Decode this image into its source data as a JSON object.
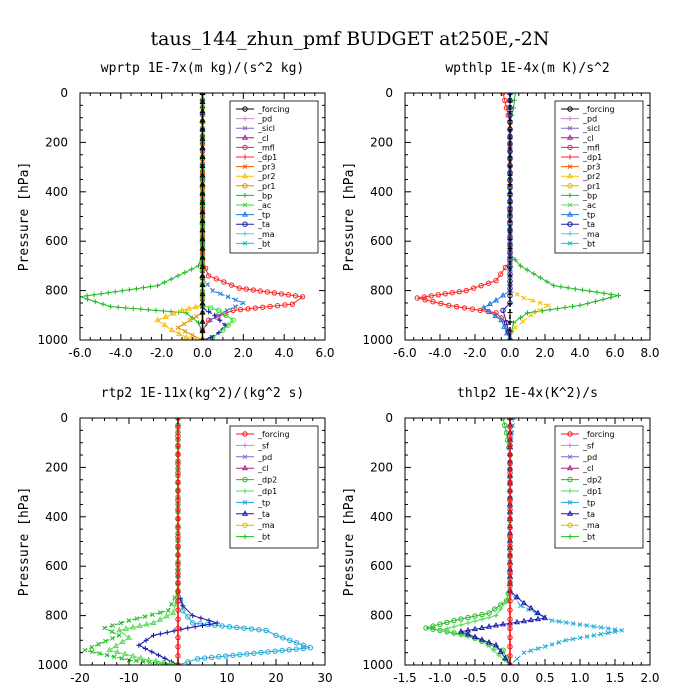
{
  "figure_title": "taus_144_zhun_pmf  BUDGET at250E,-2N",
  "chart_data": [
    {
      "type": "line",
      "title": "wprtp  1E-7x(m kg)/(s^2 kg)",
      "ylabel": "Pressure [hPa]",
      "xlim": [
        -6,
        6
      ],
      "ylim": [
        1000,
        0
      ],
      "xticks": [
        "-6.0",
        "-4.0",
        "-2.0",
        "0.0",
        "2.0",
        "4.0",
        "6.0"
      ],
      "yticks": [
        "0",
        "200",
        "400",
        "600",
        "800",
        "1000"
      ],
      "legend": [
        "_forcing",
        "_pd",
        "_sicl",
        "_cl",
        "_mfl",
        "_dp1",
        "_pr3",
        "_pr2",
        "_pr1",
        "_bp",
        "_ac",
        "_tp",
        "_ta",
        "_ma",
        "_bt"
      ],
      "series": [
        {
          "name": "_dp1",
          "color": "#ff2020",
          "x": [
            0,
            0,
            0.3,
            1.8,
            4.9,
            4.4,
            1.5,
            0.3,
            0,
            0
          ],
          "y": [
            0,
            680,
            740,
            790,
            825,
            855,
            880,
            920,
            960,
            1000
          ]
        },
        {
          "name": "_bp",
          "color": "#22bb22",
          "x": [
            0,
            0,
            -0.2,
            -2.2,
            -6.0,
            -4.5,
            -0.8,
            -0.2,
            0,
            0
          ],
          "y": [
            0,
            650,
            700,
            780,
            825,
            865,
            890,
            930,
            970,
            1000
          ]
        },
        {
          "name": "_tp",
          "color": "#2277dd",
          "x": [
            0,
            0,
            0.5,
            2.0,
            1.2,
            0.4,
            0,
            0
          ],
          "y": [
            0,
            750,
            800,
            850,
            880,
            920,
            960,
            1000
          ]
        },
        {
          "name": "_pr2",
          "color": "#ffbb00",
          "x": [
            0,
            0,
            -1.0,
            -2.2,
            -1.5,
            -0.8,
            0
          ],
          "y": [
            0,
            860,
            880,
            920,
            960,
            990,
            1000
          ]
        },
        {
          "name": "_ac",
          "color": "#33dd33",
          "x": [
            0,
            0,
            0.8,
            1.5,
            1.0,
            0.5,
            0
          ],
          "y": [
            0,
            860,
            880,
            920,
            960,
            990,
            1000
          ]
        },
        {
          "name": "_ta",
          "color": "#1a1aa8",
          "x": [
            0,
            0,
            0.6,
            1.1,
            0.8,
            0.4,
            0
          ],
          "y": [
            0,
            870,
            900,
            940,
            970,
            990,
            1000
          ]
        },
        {
          "name": "_pr1",
          "color": "#dd9900",
          "x": [
            0,
            0,
            -0.6,
            -1.2,
            -0.5,
            0
          ],
          "y": [
            0,
            890,
            920,
            950,
            980,
            1000
          ]
        },
        {
          "name": "_forcing",
          "color": "#000000",
          "x": [
            0,
            0
          ],
          "y": [
            0,
            1000
          ]
        }
      ]
    },
    {
      "type": "line",
      "title": "wpthlp  1E-4x(m K)/s^2",
      "ylabel": "Pressure [hPa]",
      "xlim": [
        -6,
        8
      ],
      "ylim": [
        1000,
        0
      ],
      "xticks": [
        "-6.0",
        "-4.0",
        "-2.0",
        "0.0",
        "2.0",
        "4.0",
        "6.0",
        "8.0"
      ],
      "yticks": [
        "0",
        "200",
        "400",
        "600",
        "800",
        "1000"
      ],
      "legend": [
        "_forcing",
        "_pd",
        "_sicl",
        "_cl",
        "_mfl",
        "_dp1",
        "_pr3",
        "_pr2",
        "_pr1",
        "_bp",
        "_ac",
        "_tp",
        "_ta",
        "_ma",
        "_bt"
      ],
      "series": [
        {
          "name": "_dp1",
          "color": "#ff2020",
          "x": [
            -0.4,
            -0.2,
            0,
            0,
            -0.8,
            -2.5,
            -5.3,
            -3.5,
            -0.8,
            -0.2,
            0
          ],
          "y": [
            0,
            60,
            120,
            680,
            760,
            800,
            830,
            860,
            890,
            930,
            1000
          ]
        },
        {
          "name": "_bp",
          "color": "#22bb22",
          "x": [
            0.3,
            0.2,
            0,
            0,
            0.6,
            2.5,
            6.2,
            4.0,
            1.0,
            0.2,
            0
          ],
          "y": [
            0,
            60,
            120,
            650,
            700,
            780,
            820,
            860,
            890,
            930,
            1000
          ]
        },
        {
          "name": "_pr2",
          "color": "#ffbb00",
          "x": [
            0,
            0,
            0.8,
            2.2,
            1.2,
            0.3,
            0
          ],
          "y": [
            0,
            800,
            830,
            860,
            900,
            950,
            1000
          ]
        },
        {
          "name": "_tp",
          "color": "#2277dd",
          "x": [
            0,
            0,
            -0.8,
            -1.5,
            -0.5,
            0
          ],
          "y": [
            0,
            800,
            840,
            870,
            920,
            1000
          ]
        },
        {
          "name": "_ta",
          "color": "#1a1aa8",
          "x": [
            0,
            0,
            -0.4,
            -0.2,
            0
          ],
          "y": [
            0,
            850,
            880,
            930,
            1000
          ]
        },
        {
          "name": "_forcing",
          "color": "#000000",
          "x": [
            0,
            0
          ],
          "y": [
            0,
            1000
          ]
        }
      ]
    },
    {
      "type": "line",
      "title": "rtp2  1E-11x(kg^2)/(kg^2 s)",
      "ylabel": "Pressure [hPa]",
      "xlim": [
        -20,
        30
      ],
      "ylim": [
        1000,
        0
      ],
      "xticks": [
        "-20",
        "-10",
        "0",
        "10",
        "20",
        "30"
      ],
      "yticks": [
        "0",
        "200",
        "400",
        "600",
        "800",
        "1000"
      ],
      "legend": [
        "_forcing",
        "_sf",
        "_pd",
        "_cl",
        "_dp2",
        "_dp1",
        "_tp",
        "_ta",
        "_ma",
        "_bt"
      ],
      "series": [
        {
          "name": "_tp",
          "color": "#1faad8",
          "x": [
            0,
            0,
            1,
            3,
            18,
            20,
            27,
            4,
            0
          ],
          "y": [
            0,
            700,
            780,
            830,
            860,
            880,
            930,
            975,
            1000
          ]
        },
        {
          "name": "_ta",
          "color": "#1a1aa8",
          "x": [
            0,
            0,
            1,
            3,
            8,
            2,
            -5,
            -8,
            -4,
            0
          ],
          "y": [
            0,
            700,
            760,
            800,
            830,
            850,
            880,
            920,
            960,
            1000
          ]
        },
        {
          "name": "_dp2",
          "color": "#22bb22",
          "x": [
            0,
            0,
            -2,
            -10,
            -15,
            -12,
            -19,
            -10,
            0
          ],
          "y": [
            0,
            700,
            780,
            820,
            850,
            880,
            940,
            980,
            1000
          ]
        },
        {
          "name": "_dp1",
          "color": "#55dd55",
          "x": [
            0,
            0,
            -1,
            -5,
            -12,
            -10,
            -14,
            -6,
            0
          ],
          "y": [
            0,
            720,
            790,
            830,
            860,
            890,
            940,
            980,
            1000
          ]
        },
        {
          "name": "_forcing",
          "color": "#ff1010",
          "x": [
            0,
            0
          ],
          "y": [
            0,
            1000
          ]
        }
      ]
    },
    {
      "type": "line",
      "title": "thlp2  1E-4x(K^2)/s",
      "ylabel": "Pressure [hPa]",
      "xlim": [
        -1.5,
        2.0
      ],
      "ylim": [
        1000,
        0
      ],
      "xticks": [
        "-1.5",
        "-1.0",
        "-0.5",
        "0.0",
        "0.5",
        "1.0",
        "1.5",
        "2.0"
      ],
      "yticks": [
        "0",
        "200",
        "400",
        "600",
        "800",
        "1000"
      ],
      "legend": [
        "_forcing",
        "_sf",
        "_pd",
        "_cl",
        "_dp2",
        "_dp1",
        "_tp",
        "_ta",
        "_ma",
        "_bt"
      ],
      "series": [
        {
          "name": "_dp2",
          "color": "#22bb22",
          "x": [
            -0.1,
            -0.05,
            0,
            0,
            -0.05,
            -0.3,
            -0.8,
            -1.2,
            -0.6,
            -0.1,
            0
          ],
          "y": [
            0,
            60,
            150,
            680,
            740,
            790,
            820,
            850,
            880,
            940,
            1000
          ]
        },
        {
          "name": "_dp1",
          "color": "#55dd55",
          "x": [
            0,
            0,
            -0.2,
            -0.6,
            -1.0,
            -0.4,
            0
          ],
          "y": [
            0,
            720,
            800,
            830,
            860,
            900,
            1000
          ]
        },
        {
          "name": "_tp",
          "color": "#1faad8",
          "x": [
            0.05,
            0,
            0,
            0.15,
            0.6,
            1.6,
            0.8,
            0.2,
            0
          ],
          "y": [
            0,
            150,
            700,
            760,
            820,
            860,
            900,
            950,
            1000
          ]
        },
        {
          "name": "_ta",
          "color": "#1a1aa8",
          "x": [
            0,
            0,
            0.2,
            0.5,
            -0.2,
            -0.7,
            -0.2,
            0
          ],
          "y": [
            0,
            700,
            750,
            810,
            840,
            865,
            920,
            1000
          ]
        },
        {
          "name": "_forcing",
          "color": "#ff1010",
          "x": [
            0,
            0
          ],
          "y": [
            0,
            1000
          ]
        }
      ]
    }
  ]
}
